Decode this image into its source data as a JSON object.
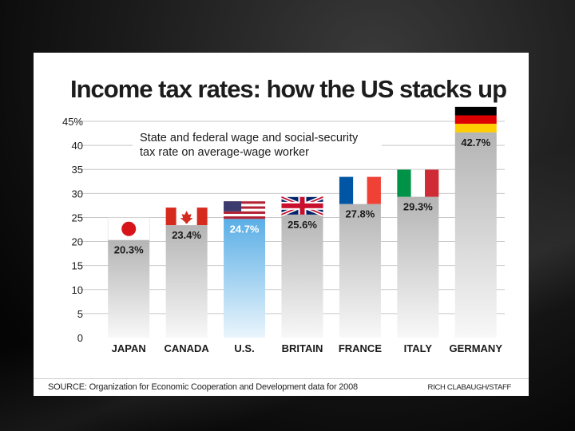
{
  "chart_data": {
    "type": "bar",
    "title": "Income tax rates: how the US stacks up",
    "subtitle": "State and federal wage and social-security tax rate on average-wage worker",
    "subtitle_lines": [
      "State and federal wage and social-security",
      "tax rate on average-wage worker"
    ],
    "categories": [
      "JAPAN",
      "CANADA",
      "U.S.",
      "BRITAIN",
      "FRANCE",
      "ITALY",
      "GERMANY"
    ],
    "values": [
      20.3,
      23.4,
      24.7,
      25.6,
      27.8,
      29.3,
      42.7
    ],
    "value_labels": [
      "20.3%",
      "23.4%",
      "24.7%",
      "25.6%",
      "27.8%",
      "29.3%",
      "42.7%"
    ],
    "flags": [
      "japan-flag",
      "canada-flag",
      "us-flag",
      "britain-flag",
      "france-flag",
      "italy-flag",
      "germany-flag"
    ],
    "highlight_index": 2,
    "yticks": [
      0,
      5,
      10,
      15,
      20,
      25,
      30,
      35,
      40,
      45
    ],
    "ytick_labels": [
      "0",
      "5",
      "10",
      "15",
      "20",
      "25",
      "30",
      "35",
      "40",
      "45%"
    ],
    "ylim": [
      0,
      45
    ],
    "xlabel": "",
    "ylabel": "",
    "grid": true,
    "colors": {
      "bar_top": "#b4b4b4",
      "bar_bottom": "#f8f8f8",
      "highlight_top": "#5aaee6",
      "highlight_bottom": "#eaf5fc",
      "grid": "#c8c8c8",
      "text": "#1a1a1a"
    }
  },
  "footer": {
    "source": "SOURCE: Organization for Economic Cooperation and Development data for 2008",
    "credit": "RICH CLABAUGH/STAFF"
  }
}
